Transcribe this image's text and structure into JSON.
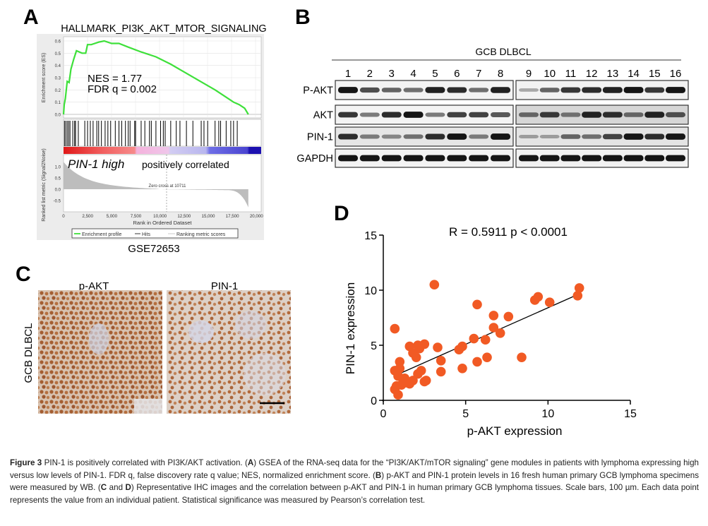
{
  "panels": {
    "A": {
      "letter": "A",
      "title": "HALLMARK_PI3K_AKT_MTOR_SIGNALING",
      "es_axis_label": "Enrichment score (ES)",
      "es_ticks": [
        "0.6",
        "0.5",
        "0.4",
        "0.3",
        "0.2",
        "0.1",
        "0.0"
      ],
      "nes_text": "NES = 1.77",
      "fdr_text": "FDR q = 0.002",
      "phenotype_italic": "PIN-1 high",
      "phenotype_rest": "positively correlated",
      "zero_cross": "Zero cross at 10711",
      "metric_axis_label": "Ranked list metric (Signal2Noise)",
      "metric_ticks": [
        "1.0",
        "0.5",
        "0.0",
        "-0.5"
      ],
      "x_ticks": [
        "0",
        "2,500",
        "5,000",
        "7,500",
        "10,000",
        "12,500",
        "15,000",
        "17,500",
        "20,000"
      ],
      "x_label": "Rank in Ordered Dataset",
      "legend": [
        "Enrichment profile",
        "Hits",
        "Ranking metric scores"
      ],
      "dataset": "GSE72653",
      "colors": {
        "profile": "#3ee03a",
        "hits": "#000000",
        "metric": "#bdbdbd"
      }
    },
    "B": {
      "letter": "B",
      "group_label": "GCB DLBCL",
      "lanes": [
        "1",
        "2",
        "3",
        "4",
        "5",
        "6",
        "7",
        "8",
        "9",
        "10",
        "11",
        "12",
        "13",
        "14",
        "15",
        "16"
      ],
      "rows": [
        {
          "label": "P-AKT",
          "intensity": [
            0.95,
            0.7,
            0.6,
            0.55,
            0.9,
            0.85,
            0.55,
            0.9,
            0.3,
            0.6,
            0.8,
            0.85,
            0.9,
            0.95,
            0.8,
            0.95
          ]
        },
        {
          "label": "AKT",
          "intensity": [
            0.8,
            0.5,
            0.85,
            0.95,
            0.5,
            0.75,
            0.75,
            0.65,
            0.6,
            0.8,
            0.55,
            0.9,
            0.85,
            0.6,
            0.9,
            0.7
          ]
        },
        {
          "label": "PIN-1",
          "intensity": [
            0.85,
            0.5,
            0.45,
            0.55,
            0.85,
            0.95,
            0.5,
            0.95,
            0.35,
            0.35,
            0.6,
            0.55,
            0.75,
            0.95,
            0.85,
            0.95
          ]
        },
        {
          "label": "GAPDH",
          "intensity": [
            0.95,
            0.95,
            0.95,
            0.95,
            0.95,
            0.95,
            0.95,
            0.95,
            0.95,
            0.95,
            0.95,
            0.95,
            0.95,
            0.95,
            0.95,
            0.95
          ]
        }
      ]
    },
    "C": {
      "letter": "C",
      "row_label": "GCB DLBCL",
      "columns": [
        "p-AKT",
        "PIN-1"
      ]
    },
    "D": {
      "letter": "D"
    }
  },
  "chart_data": {
    "type": "scatter",
    "title": "R = 0.5911 p < 0.0001",
    "xlabel": "p-AKT expression",
    "ylabel": "PIN-1 expression",
    "xlim": [
      0,
      15
    ],
    "ylim": [
      0,
      15
    ],
    "x_ticks": [
      "0",
      "5",
      "10",
      "15"
    ],
    "y_ticks": [
      "0",
      "5",
      "10",
      "15"
    ],
    "grid": false,
    "point_color": "#f15a24",
    "fit_line": {
      "x": [
        1.1,
        11.8
      ],
      "y": [
        2.5,
        9.6
      ]
    },
    "x": [
      0.7,
      3.1,
      5.7,
      9.2,
      9.4,
      10.1,
      11.8,
      11.9,
      6.7,
      7.6,
      6.7,
      7.1,
      5.5,
      6.2,
      4.6,
      4.8,
      3.3,
      1.6,
      2.1,
      2.5,
      1.8,
      2.2,
      2.0,
      1.0,
      0.7,
      1.0,
      3.5,
      3.5,
      4.8,
      5.7,
      6.3,
      8.4,
      0.9,
      1.2,
      1.4,
      1.8,
      2.1,
      2.6,
      2.5,
      0.7,
      0.9,
      0.8,
      1.1,
      1.3,
      1.6,
      2.3
    ],
    "y": [
      6.5,
      10.5,
      8.7,
      9.1,
      9.4,
      8.9,
      9.5,
      10.2,
      7.7,
      7.6,
      6.6,
      6.1,
      5.6,
      5.5,
      4.6,
      4.9,
      4.8,
      4.9,
      5.0,
      5.1,
      4.3,
      4.7,
      3.9,
      3.5,
      2.7,
      2.9,
      3.6,
      2.6,
      2.9,
      3.5,
      3.9,
      3.9,
      2.2,
      1.9,
      1.6,
      1.8,
      2.4,
      1.8,
      1.7,
      1.0,
      0.5,
      1.3,
      1.4,
      2.0,
      1.5,
      2.7
    ]
  },
  "caption": {
    "figure_label": "Figure 3",
    "parts": [
      {
        "t": " PIN-1 is positively correlated with PI3K/AKT activation. (",
        "b": false
      },
      {
        "t": "A",
        "b": true
      },
      {
        "t": ") GSEA of the RNA-seq data for the “PI3K/AKT/mTOR signaling” gene modules in patients with lymphoma expressing high versus low levels of PIN-1. FDR q, false discovery rate q value; NES, normalized enrichment score. (",
        "b": false
      },
      {
        "t": "B",
        "b": true
      },
      {
        "t": ") p-AKT and PIN-1 protein levels in 16 fresh human primary GCB lymphoma specimens were measured by WB. (",
        "b": false
      },
      {
        "t": "C",
        "b": true
      },
      {
        "t": " and ",
        "b": false
      },
      {
        "t": "D",
        "b": true
      },
      {
        "t": ") Representative IHC images and the correlation between p-AKT and PIN-1 in human primary GCB lymphoma tissues. Scale bars, 100 µm. Each data point represents the value from an individual patient. Statistical significance was measured by Pearson’s correlation test.",
        "b": false
      }
    ]
  }
}
